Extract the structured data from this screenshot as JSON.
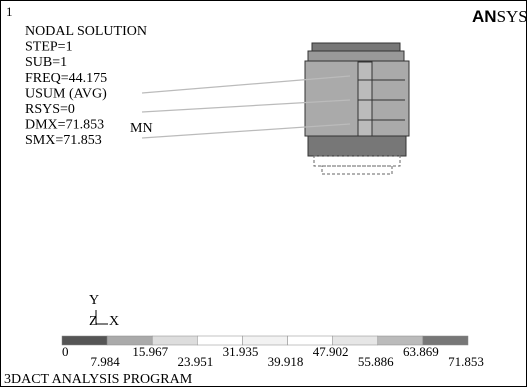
{
  "header": {
    "window_number": "1",
    "logo_bold": "AN",
    "logo_rest": "SYS"
  },
  "info_lines": [
    "NODAL SOLUTION",
    "STEP=1",
    "SUB=1",
    "FREQ=44.175",
    "USUM   (AVG)",
    "RSYS=0",
    "DMX=71.853",
    "SMX=71.853"
  ],
  "model_label": "MN",
  "triad": {
    "y": "Y",
    "z": "Z",
    "x": "X"
  },
  "legend_labels": [
    "0",
    "7.984",
    "15.967",
    "23.951",
    "31.935",
    "39.918",
    "47.902",
    "55.886",
    "63.869",
    "71.853"
  ],
  "footer": "3DACT ANALYSIS PROGRAM"
}
